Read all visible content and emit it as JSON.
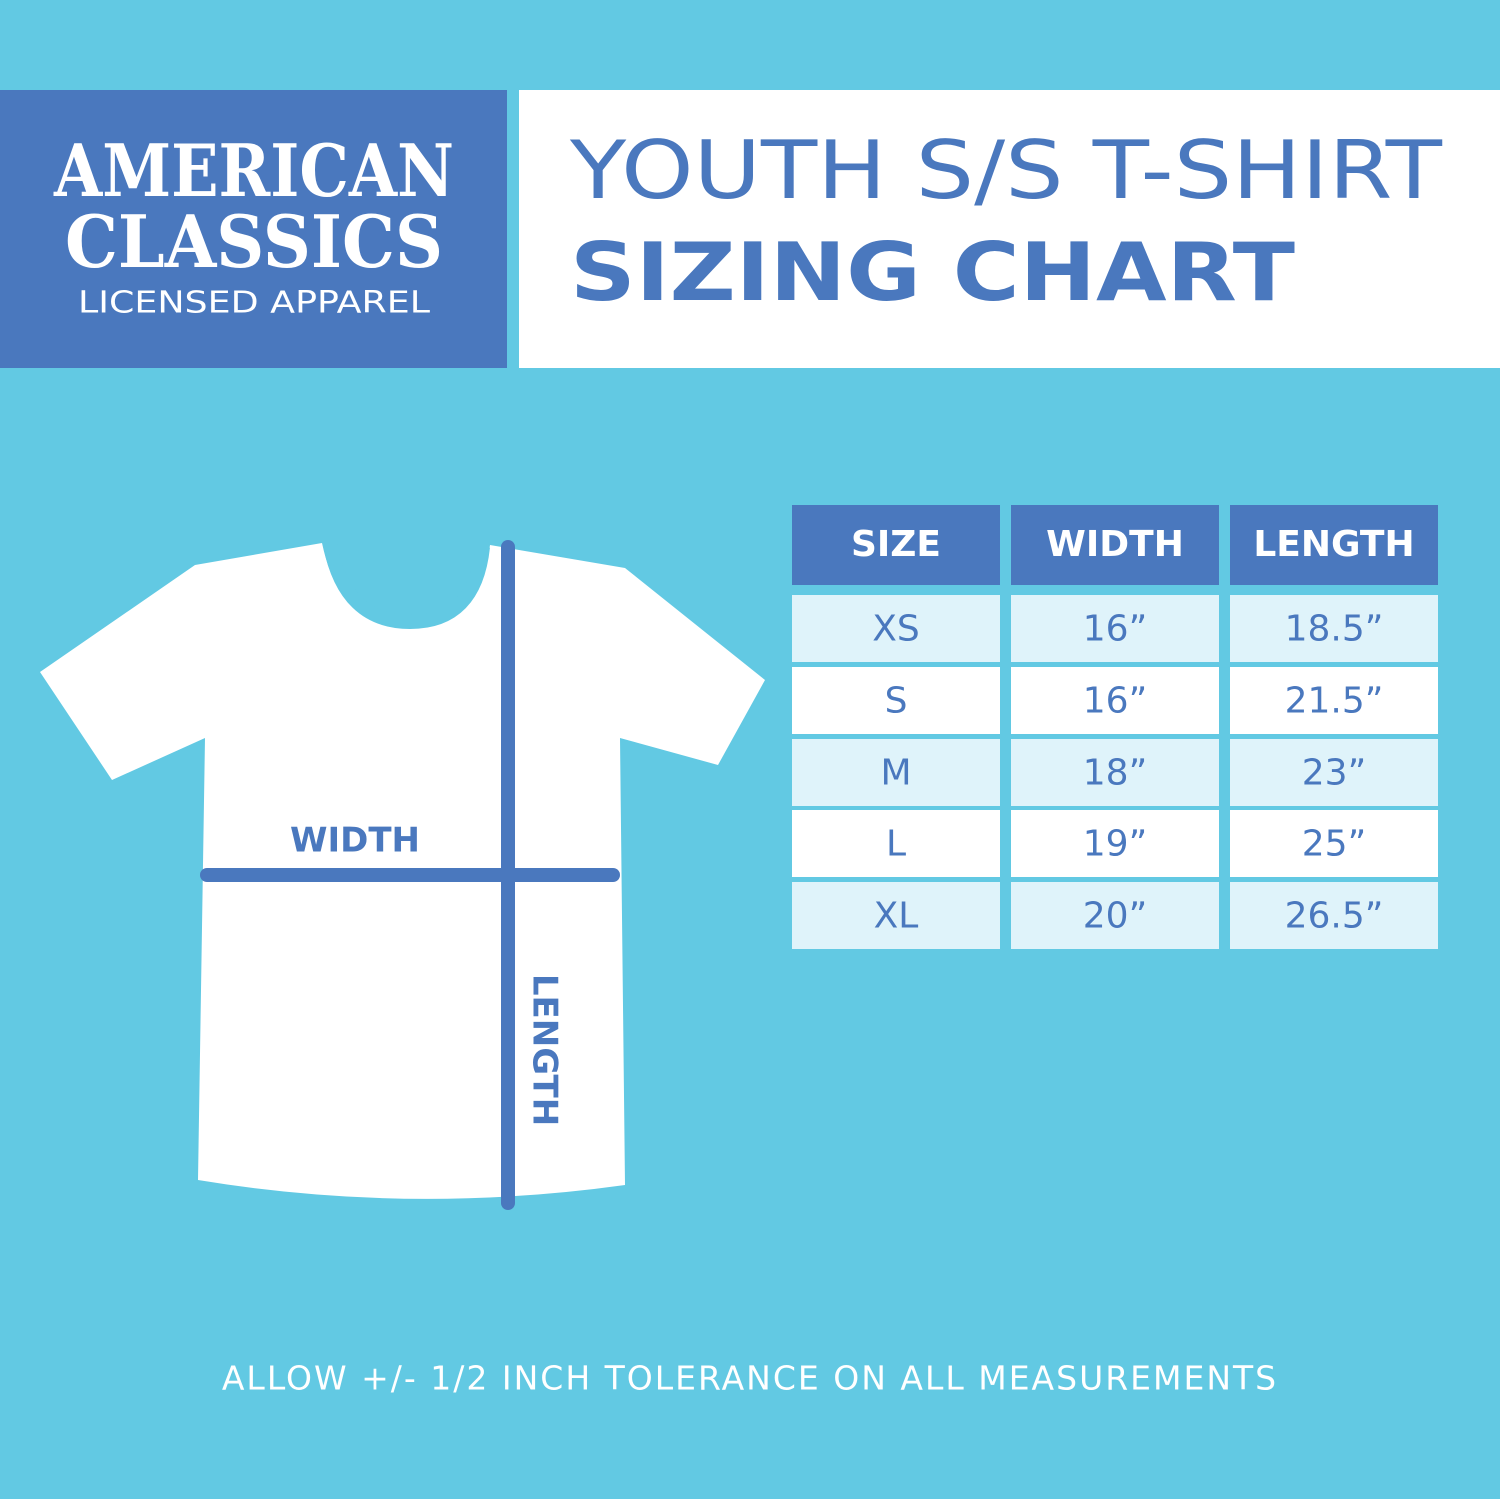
{
  "logo": {
    "name_line1": "AMERICAN",
    "name_line2": "CLASSICS",
    "tagline": "LICENSED APPAREL"
  },
  "title": {
    "line1": "YOUTH S/S T-SHIRT",
    "line2": "SIZING CHART"
  },
  "table": {
    "header": [
      "SIZE",
      "WIDTH",
      "LENGTH"
    ],
    "rows": [
      [
        "XS",
        "16”",
        "18.5”"
      ],
      [
        "S",
        "16”",
        "21.5”"
      ],
      [
        "M",
        "18”",
        "23”"
      ],
      [
        "L",
        "19”",
        "25”"
      ],
      [
        "XL",
        "20”",
        "26.5”"
      ]
    ]
  },
  "diagram": {
    "width_label": "WIDTH",
    "length_label": "LENGTH"
  },
  "footer_note": "ALLOW +/- 1/2 INCH TOLERANCE ON ALL MEASUREMENTS"
}
